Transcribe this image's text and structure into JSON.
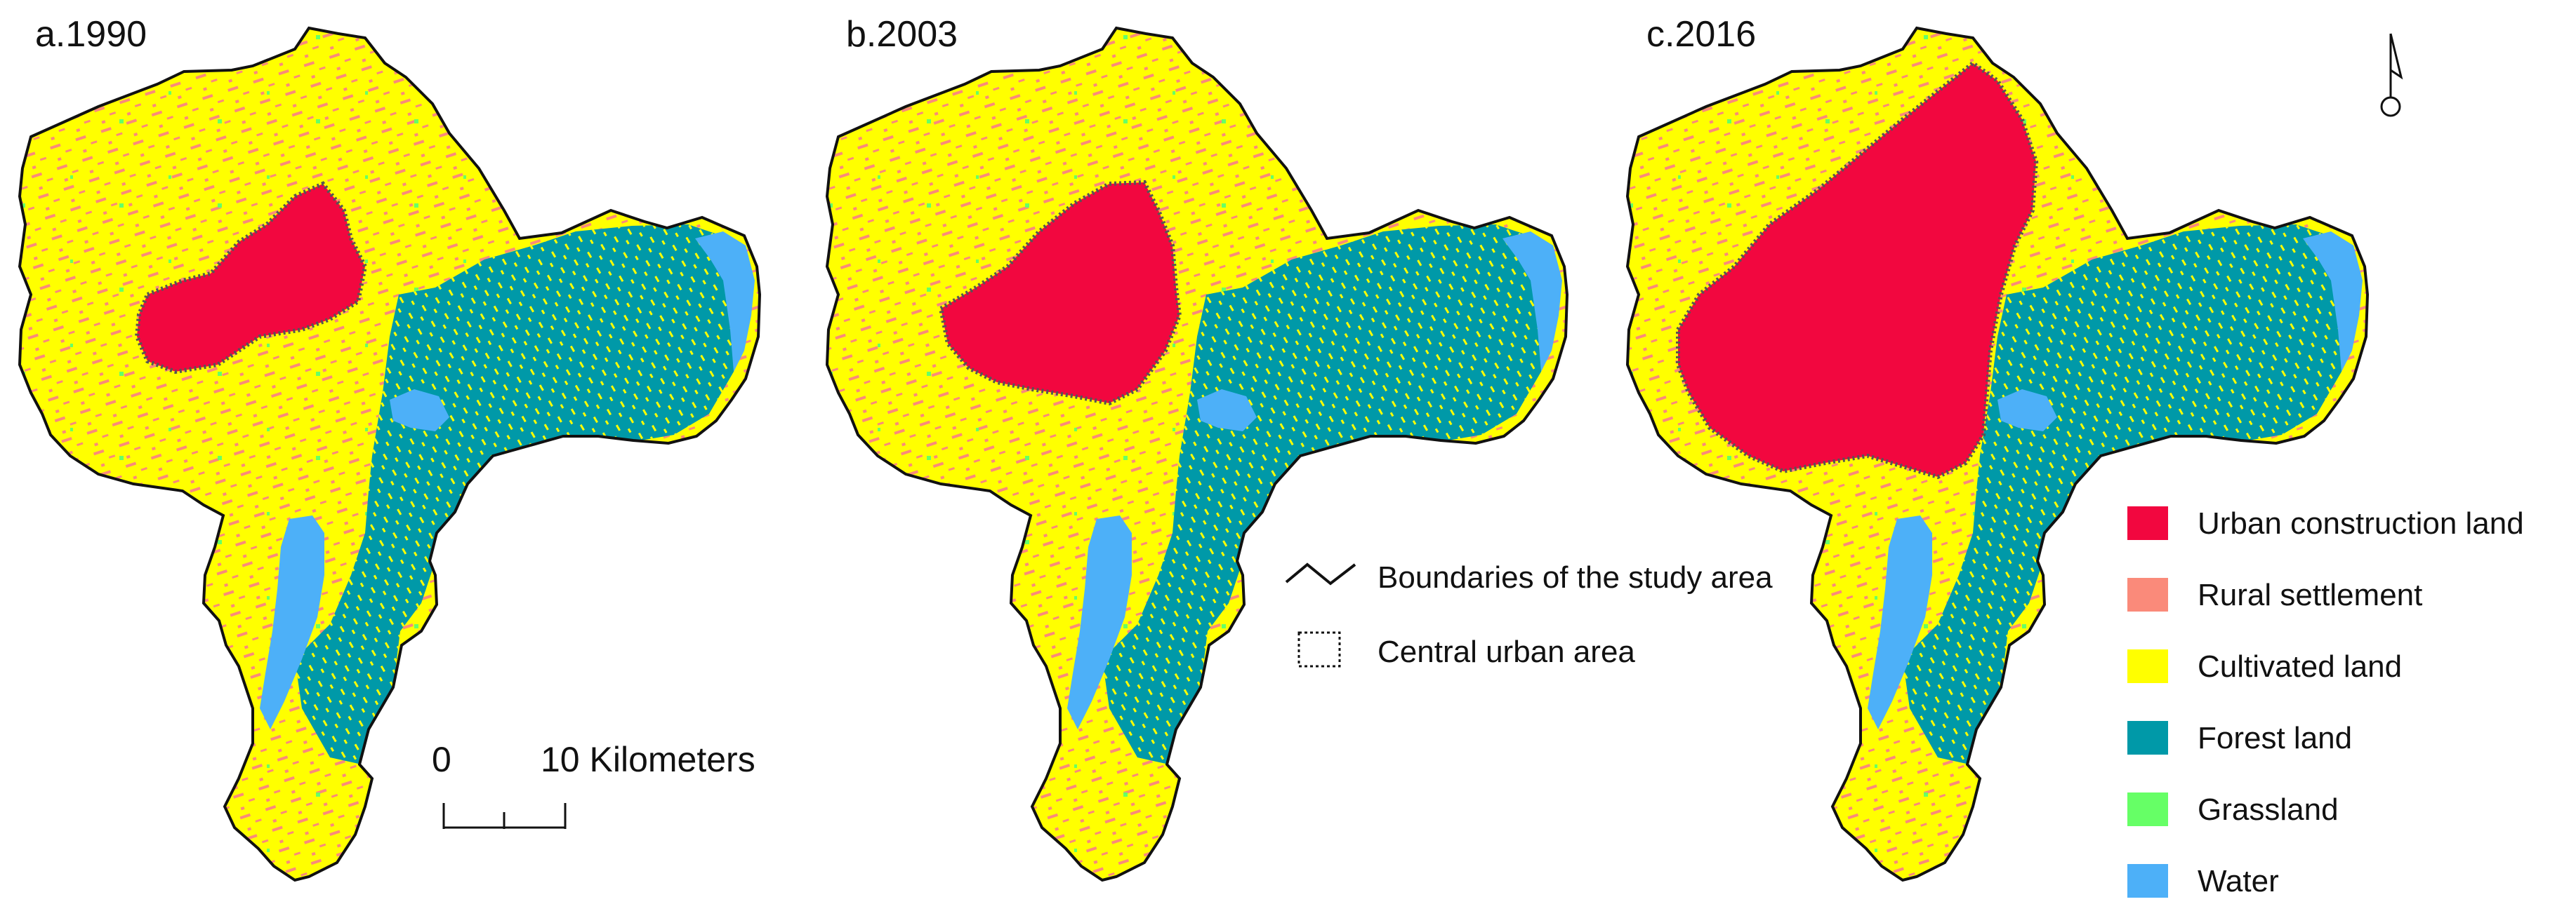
{
  "panels": [
    {
      "label": "a.1990"
    },
    {
      "label": "b.2003"
    },
    {
      "label": "c.2016"
    }
  ],
  "scale_bar": {
    "zero": "0",
    "end": "10 Kilometers"
  },
  "boundary_legend": [
    {
      "label": "Boundaries of the study area",
      "icon": "boundary-line-icon"
    },
    {
      "label": "Central urban area",
      "icon": "dotted-rectangle-icon"
    }
  ],
  "landuse_legend": [
    {
      "label": "Urban construction land",
      "color": "#F2073F"
    },
    {
      "label": "Rural settlement",
      "color": "#FA8A7A"
    },
    {
      "label": "Cultivated land",
      "color": "#FFFF00"
    },
    {
      "label": "Forest land",
      "color": "#0099A8"
    },
    {
      "label": "Grassland",
      "color": "#66FF66"
    },
    {
      "label": "Water",
      "color": "#4DB0F8"
    }
  ],
  "north_arrow": "north-arrow-icon"
}
